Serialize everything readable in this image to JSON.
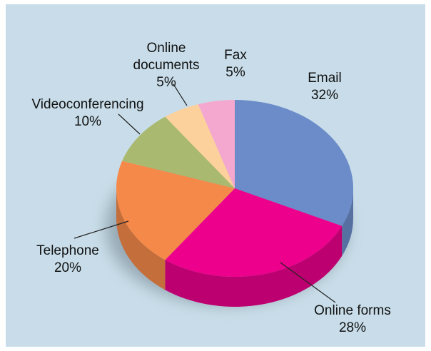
{
  "chart_data": {
    "type": "pie",
    "categories": [
      "Email",
      "Online forms",
      "Telephone",
      "Videoconferencing",
      "Online documents",
      "Fax"
    ],
    "values": [
      32,
      28,
      20,
      10,
      5,
      5
    ],
    "value_labels": [
      "32%",
      "28%",
      "20%",
      "10%",
      "5%",
      "5%"
    ],
    "colors": [
      "#6b8cc9",
      "#ec008c",
      "#f5894a",
      "#a9b96f",
      "#fdd19b",
      "#f4a8cf"
    ]
  }
}
